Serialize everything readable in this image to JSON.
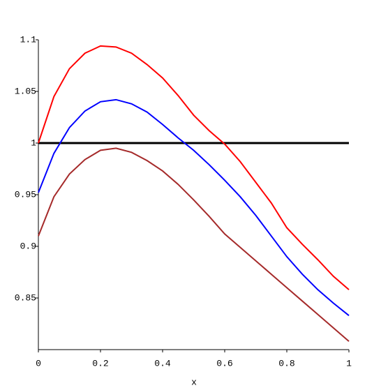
{
  "chart_data": {
    "type": "line",
    "xlabel": "x",
    "x": [
      0,
      0.05,
      0.1,
      0.15,
      0.2,
      0.25,
      0.3,
      0.35,
      0.4,
      0.45,
      0.5,
      0.55,
      0.6,
      0.65,
      0.7,
      0.75,
      0.8,
      0.85,
      0.9,
      0.95,
      1
    ],
    "series": [
      {
        "color": "#000000",
        "values": [
          1,
          1,
          1,
          1,
          1,
          1,
          1,
          1,
          1,
          1,
          1,
          1,
          1,
          1,
          1,
          1,
          1,
          1,
          1,
          1,
          1
        ]
      },
      {
        "color": "#ff0000",
        "values": [
          1.0,
          1.045,
          1.072,
          1.087,
          1.094,
          1.093,
          1.087,
          1.076,
          1.063,
          1.046,
          1.027,
          1.012,
          0.999,
          0.982,
          0.962,
          0.942,
          0.918,
          0.902,
          0.887,
          0.871,
          0.858
        ]
      },
      {
        "color": "#0000ff",
        "values": [
          0.952,
          0.99,
          1.015,
          1.031,
          1.04,
          1.042,
          1.038,
          1.03,
          1.018,
          1.005,
          0.993,
          0.979,
          0.964,
          0.948,
          0.93,
          0.91,
          0.89,
          0.873,
          0.858,
          0.845,
          0.833
        ]
      },
      {
        "color": "#a52a2a",
        "values": [
          0.91,
          0.948,
          0.97,
          0.984,
          0.993,
          0.995,
          0.991,
          0.983,
          0.973,
          0.96,
          0.945,
          0.929,
          0.912,
          0.899,
          0.886,
          0.873,
          0.86,
          0.847,
          0.834,
          0.821,
          0.808
        ]
      }
    ],
    "xlim": [
      0,
      1
    ],
    "xticks": [
      0,
      0.2,
      0.4,
      0.6,
      0.8,
      1
    ],
    "ylim": [
      0.8,
      1.1
    ],
    "yticks": [
      0.85,
      0.9,
      0.95,
      1,
      1.05,
      1.1
    ]
  }
}
